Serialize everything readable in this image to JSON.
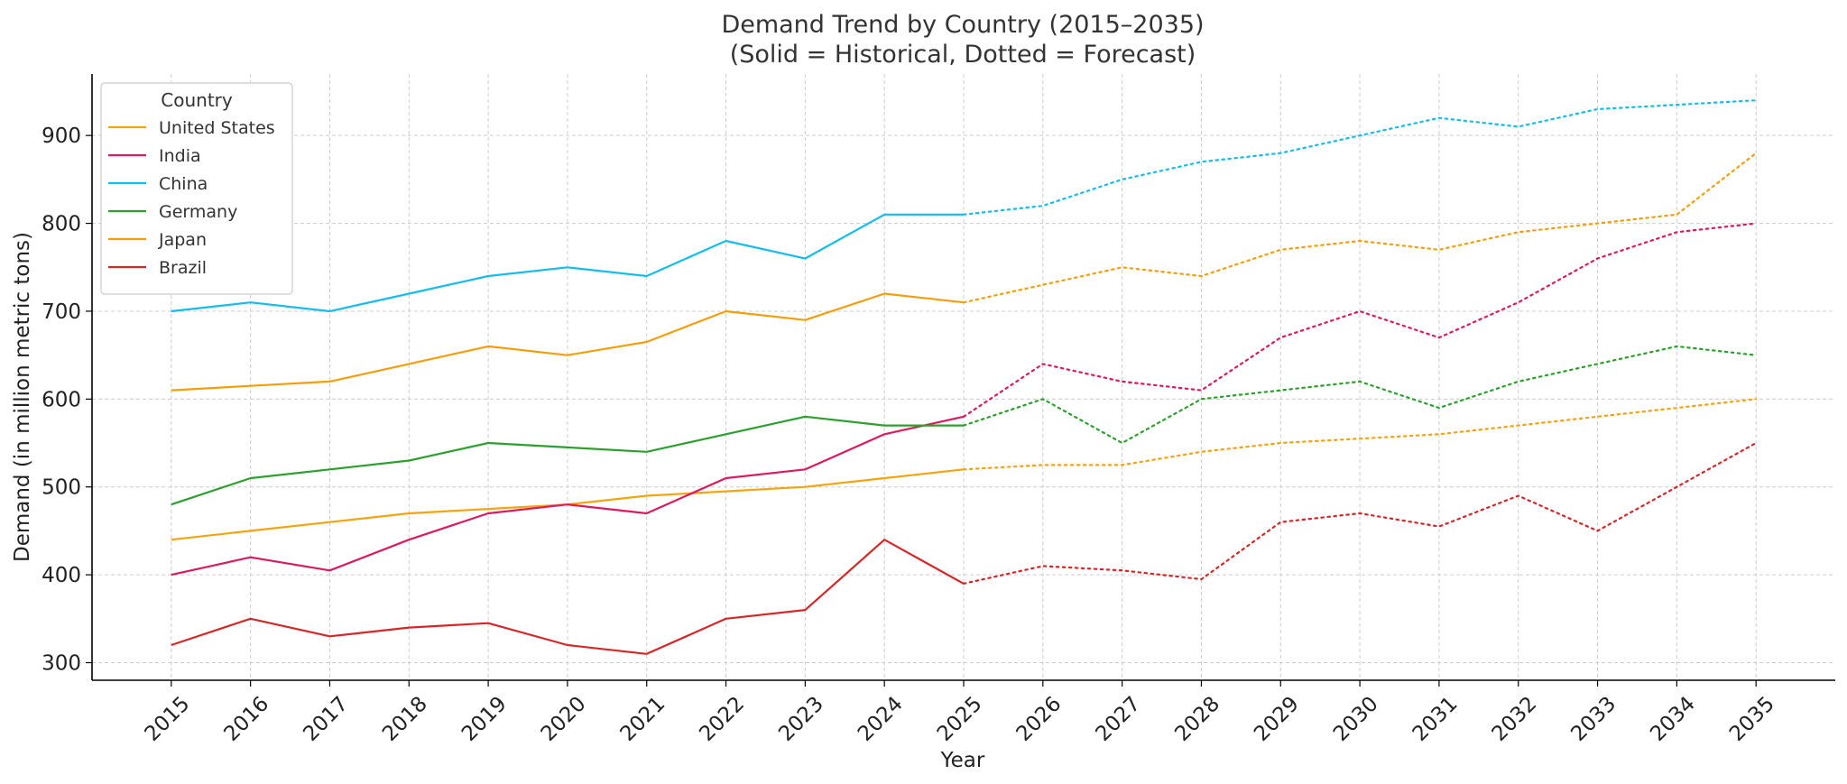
{
  "chart_data": {
    "type": "line",
    "title": "Demand Trend by Country (2015–2035)",
    "subtitle": "(Solid = Historical, Dotted = Forecast)",
    "xlabel": "Year",
    "ylabel": "Demand (in million metric tons)",
    "x": [
      2015,
      2016,
      2017,
      2018,
      2019,
      2020,
      2021,
      2022,
      2023,
      2024,
      2025,
      2026,
      2027,
      2028,
      2029,
      2030,
      2031,
      2032,
      2033,
      2034,
      2035
    ],
    "historical_end": 2025,
    "yticks": [
      300,
      400,
      500,
      600,
      700,
      800,
      900
    ],
    "ylim": [
      280,
      970
    ],
    "xlim": [
      2014,
      2036
    ],
    "grid": true,
    "legend": {
      "title": "Country",
      "placement": "top-left"
    },
    "series": [
      {
        "name": "United States",
        "color": "#f5a30f",
        "values": [
          440,
          450,
          460,
          470,
          475,
          480,
          490,
          495,
          500,
          510,
          520,
          525,
          525,
          540,
          550,
          555,
          560,
          570,
          580,
          590,
          600
        ]
      },
      {
        "name": "India",
        "color": "#dc1a5f",
        "values": [
          400,
          420,
          405,
          440,
          470,
          480,
          470,
          510,
          520,
          560,
          580,
          640,
          620,
          610,
          670,
          700,
          670,
          710,
          760,
          790,
          800
        ]
      },
      {
        "name": "China",
        "color": "#14bdeb",
        "values": [
          700,
          710,
          700,
          720,
          740,
          750,
          740,
          780,
          760,
          810,
          810,
          820,
          850,
          870,
          880,
          900,
          920,
          910,
          930,
          935,
          940
        ]
      },
      {
        "name": "Germany",
        "color": "#2ca02c",
        "values": [
          480,
          510,
          520,
          530,
          550,
          545,
          540,
          560,
          580,
          570,
          570,
          600,
          550,
          600,
          610,
          620,
          590,
          620,
          640,
          660,
          650
        ]
      },
      {
        "name": "Japan",
        "color": "#f59e0b",
        "values": [
          610,
          615,
          620,
          640,
          660,
          650,
          665,
          700,
          690,
          720,
          710,
          730,
          750,
          740,
          770,
          780,
          770,
          790,
          800,
          810,
          880
        ]
      },
      {
        "name": "Brazil",
        "color": "#d62728",
        "values": [
          320,
          350,
          330,
          340,
          345,
          320,
          310,
          350,
          360,
          440,
          390,
          410,
          405,
          395,
          460,
          470,
          455,
          490,
          450,
          500,
          550
        ]
      }
    ]
  }
}
